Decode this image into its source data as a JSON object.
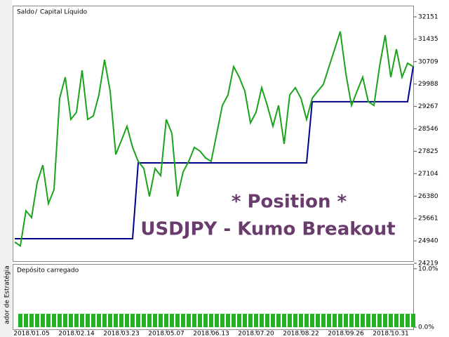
{
  "chart_data": [
    {
      "type": "line",
      "side_label": "ador de Estratégia",
      "legend_separator": "/",
      "annotations": [
        "* Position *",
        "USDJPY - Kumo Breakout"
      ],
      "categories": [
        null,
        null,
        null,
        "2018.01.05",
        null,
        null,
        null,
        null,
        null,
        null,
        null,
        "2018.02.14",
        null,
        null,
        null,
        null,
        null,
        null,
        null,
        "2018.03.23",
        null,
        null,
        null,
        null,
        null,
        null,
        null,
        "2018.05.07",
        null,
        null,
        null,
        null,
        null,
        null,
        null,
        "2018.06.13",
        null,
        null,
        null,
        null,
        null,
        null,
        null,
        "2018.07.20",
        null,
        null,
        null,
        null,
        null,
        null,
        null,
        "2018.08.22",
        null,
        null,
        null,
        null,
        null,
        null,
        null,
        "2018.09.26",
        null,
        null,
        null,
        null,
        null,
        null,
        null,
        "2018.10.31",
        null,
        null,
        null,
        null
      ],
      "series": [
        {
          "name": "Saldo",
          "color": "#00008b",
          "values": [
            25010,
            25010,
            25010,
            25010,
            25010,
            25010,
            25010,
            25010,
            25010,
            25010,
            25010,
            25010,
            25010,
            25010,
            25010,
            25010,
            25010,
            25010,
            25010,
            25010,
            25010,
            25010,
            27450,
            27450,
            27450,
            27450,
            27450,
            27450,
            27450,
            27450,
            27450,
            27450,
            27450,
            27450,
            27450,
            27450,
            27450,
            27450,
            27450,
            27450,
            27450,
            27450,
            27450,
            27450,
            27450,
            27450,
            27450,
            27450,
            27450,
            27450,
            27450,
            27450,
            27450,
            29420,
            29420,
            29420,
            29420,
            29420,
            29420,
            29420,
            29420,
            29420,
            29420,
            29420,
            29420,
            29420,
            29420,
            29420,
            29420,
            29420,
            29420,
            30550
          ]
        },
        {
          "name": "Capital Líquido",
          "color": "#1aa31a",
          "values": [
            24900,
            24780,
            25910,
            25690,
            26820,
            27380,
            26140,
            26590,
            29530,
            30210,
            28850,
            29080,
            30430,
            28850,
            28960,
            29640,
            30770,
            29760,
            27720,
            28170,
            28630,
            27950,
            27500,
            27270,
            26370,
            27270,
            27040,
            28850,
            28400,
            26370,
            27160,
            27500,
            27950,
            27830,
            27610,
            27500,
            28400,
            29300,
            29640,
            30550,
            30210,
            29760,
            28740,
            29080,
            29870,
            29300,
            28630,
            29300,
            28060,
            29640,
            29870,
            29530,
            28850,
            29530,
            29760,
            29980,
            30550,
            31110,
            31680,
            30320,
            29300,
            29760,
            30210,
            29420,
            29300,
            30550,
            31560,
            30210,
            31110,
            30210,
            30660,
            30550
          ]
        }
      ],
      "ylim": [
        24287,
        32354
      ],
      "yticks": [
        32151,
        31435,
        30709,
        29988,
        29267,
        28546,
        27825,
        27104,
        26380,
        25661,
        24940,
        24219
      ]
    },
    {
      "type": "bar",
      "title": "Depósito carregado",
      "color": "#22b322",
      "values": [
        2.3,
        2.3,
        2.3,
        2.3,
        2.3,
        2.3,
        2.3,
        2.3,
        2.3,
        2.3,
        2.3,
        2.3,
        2.3,
        2.3,
        2.3,
        2.3,
        2.3,
        2.3,
        2.3,
        2.3,
        2.3,
        2.3,
        2.3,
        2.3,
        2.3,
        2.3,
        2.3,
        2.3,
        2.3,
        2.3,
        2.3,
        2.3,
        2.3,
        2.3,
        2.3,
        2.3,
        2.3,
        2.3,
        2.3,
        2.3,
        2.3,
        2.3,
        2.3,
        2.3,
        2.3,
        2.3,
        2.3,
        2.3,
        2.3,
        2.3,
        2.3,
        2.3,
        2.3,
        2.3,
        2.3,
        2.3,
        2.3,
        2.3,
        2.3,
        2.3,
        2.3,
        2.3,
        2.3,
        2.3,
        2.3,
        2.3,
        2.3,
        2.3,
        2.3,
        2.3,
        2.3
      ],
      "ylim": [
        0,
        10.7
      ],
      "yticks": [
        {
          "value": 10,
          "label": "10.0%"
        },
        {
          "value": 0,
          "label": "0.0%"
        }
      ]
    }
  ]
}
